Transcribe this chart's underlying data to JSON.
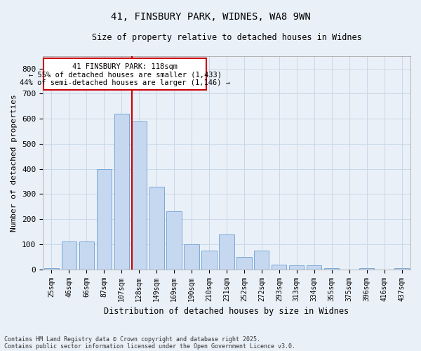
{
  "title_line1": "41, FINSBURY PARK, WIDNES, WA8 9WN",
  "title_line2": "Size of property relative to detached houses in Widnes",
  "xlabel": "Distribution of detached houses by size in Widnes",
  "ylabel": "Number of detached properties",
  "categories": [
    "25sqm",
    "46sqm",
    "66sqm",
    "87sqm",
    "107sqm",
    "128sqm",
    "149sqm",
    "169sqm",
    "190sqm",
    "210sqm",
    "231sqm",
    "252sqm",
    "272sqm",
    "293sqm",
    "313sqm",
    "334sqm",
    "355sqm",
    "375sqm",
    "396sqm",
    "416sqm",
    "437sqm"
  ],
  "values": [
    5,
    110,
    110,
    400,
    620,
    590,
    330,
    230,
    100,
    75,
    140,
    50,
    75,
    20,
    15,
    15,
    5,
    0,
    5,
    0,
    5
  ],
  "bar_color": "#c5d8f0",
  "bar_edge_color": "#7aa8d4",
  "grid_color": "#c8d8e8",
  "background_color": "#eaf0f8",
  "red_line_color": "#cc0000",
  "red_line_bar_index": 5,
  "annotation_border_color": "#cc0000",
  "annotation_text_line1": "41 FINSBURY PARK: 118sqm",
  "annotation_text_line2": "← 55% of detached houses are smaller (1,433)",
  "annotation_text_line3": "44% of semi-detached houses are larger (1,146) →",
  "ylim": [
    0,
    850
  ],
  "yticks": [
    0,
    100,
    200,
    300,
    400,
    500,
    600,
    700,
    800
  ],
  "footnote_line1": "Contains HM Land Registry data © Crown copyright and database right 2025.",
  "footnote_line2": "Contains public sector information licensed under the Open Government Licence v3.0."
}
